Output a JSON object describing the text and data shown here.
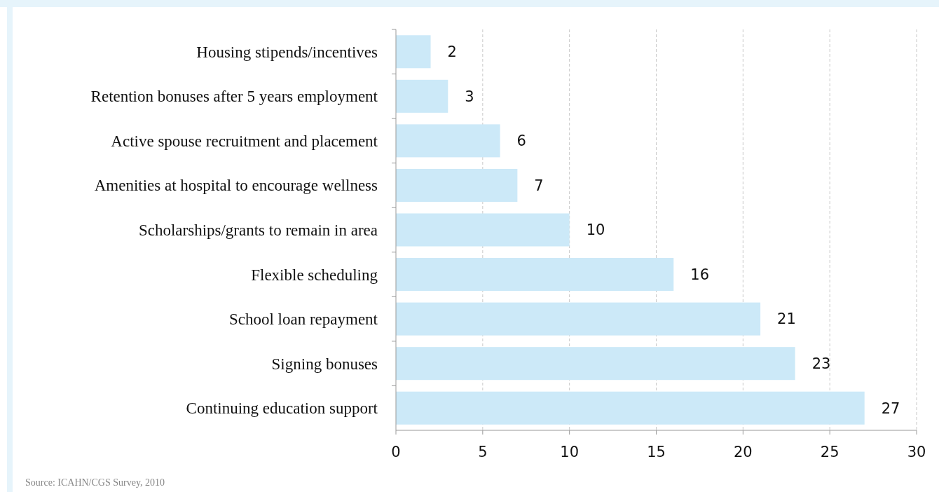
{
  "chart_data": {
    "type": "bar",
    "orientation": "horizontal",
    "categories": [
      "Housing stipends/incentives",
      "Retention bonuses after 5 years employment",
      "Active spouse recruitment and placement",
      "Amenities at hospital to encourage wellness",
      "Scholarships/grants to remain in area",
      "Flexible scheduling",
      "School loan repayment",
      "Signing bonuses",
      "Continuing education support"
    ],
    "values": [
      2,
      3,
      6,
      7,
      10,
      16,
      21,
      23,
      27
    ],
    "color": "#cce9f8",
    "xlim": [
      0,
      30
    ],
    "xticks": [
      0,
      5,
      10,
      15,
      20,
      25,
      30
    ],
    "grid": "x",
    "data_labels": true,
    "annotations": [
      "Source: ICAHN/CGS Survey, 2010"
    ]
  }
}
